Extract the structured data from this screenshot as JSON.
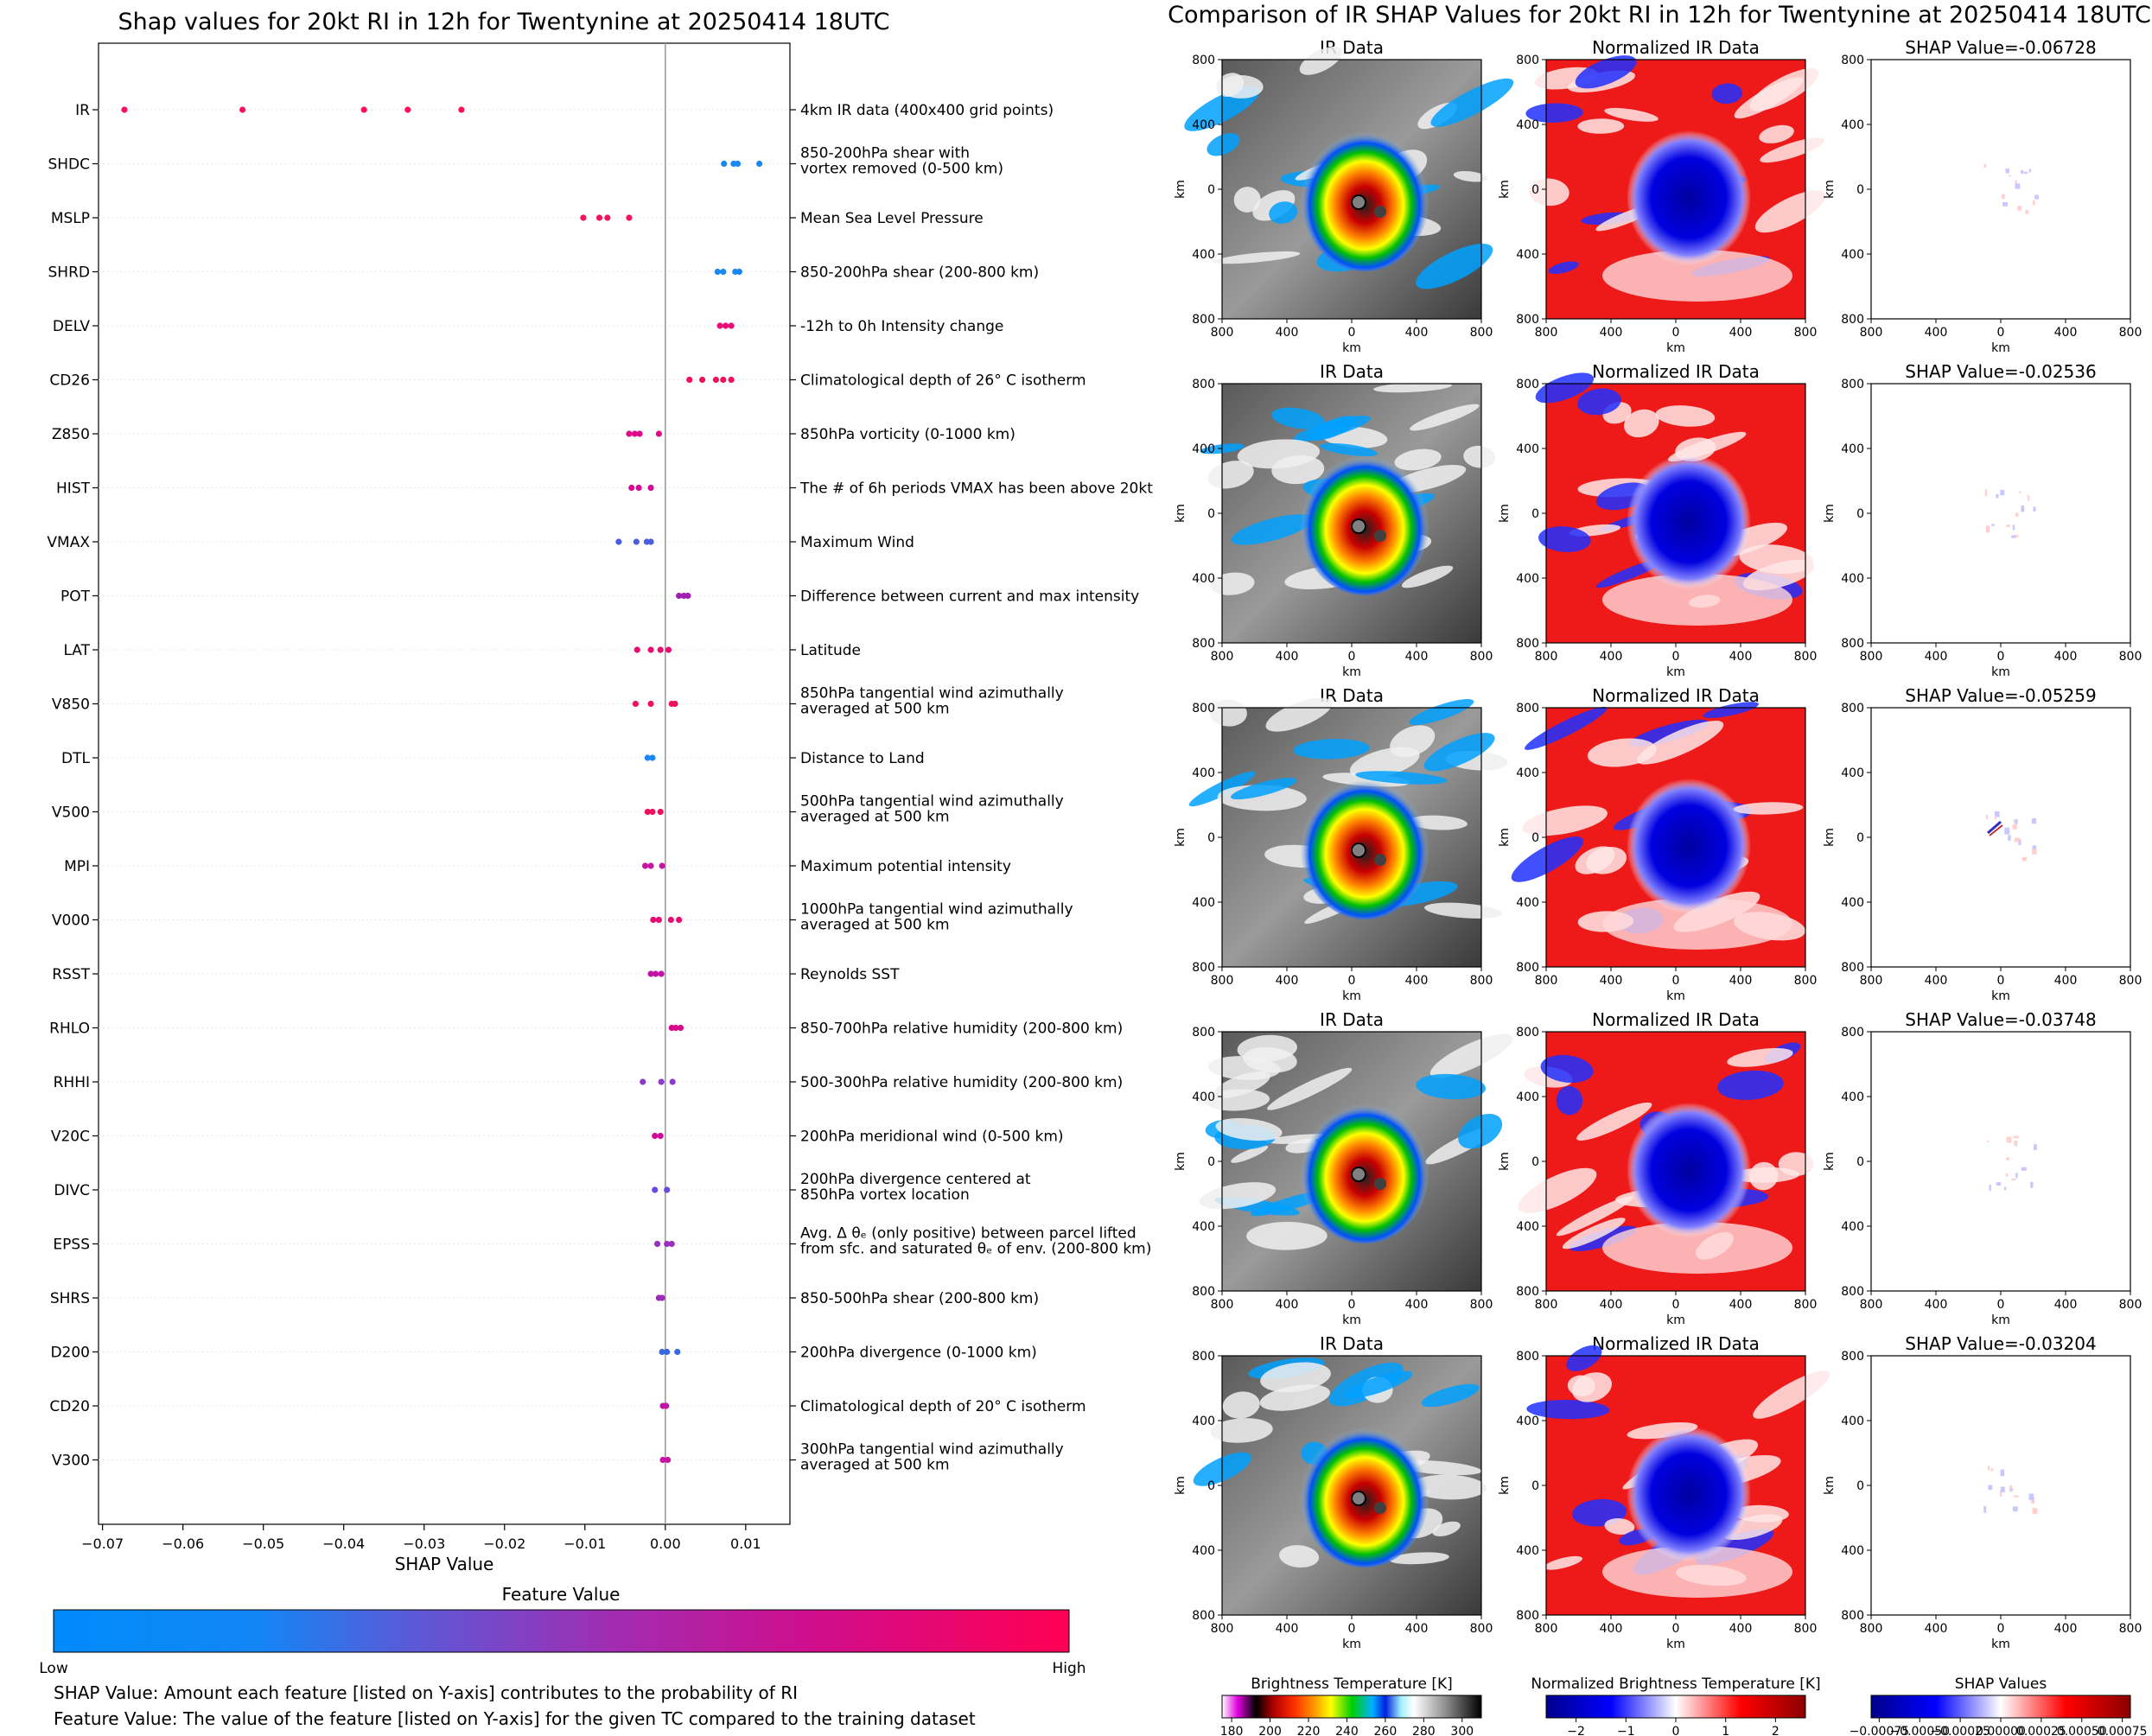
{
  "left_chart": {
    "title": "Shap values for 20kt RI in 12h for Twentynine at 20250414 18UTC",
    "xlabel": "SHAP Value",
    "x_ticks": [
      "−0.07",
      "−0.06",
      "−0.05",
      "−0.04",
      "−0.03",
      "−0.02",
      "−0.01",
      "0.00",
      "0.01"
    ],
    "colorbar": {
      "title": "Feature Value",
      "low_label": "Low",
      "high_label": "High"
    },
    "footnotes": [
      "SHAP Value: Amount each feature [listed on Y-axis] contributes to the probability of RI",
      "Feature Value: The value of the feature [listed on Y-axis] for the given TC compared to the training dataset"
    ]
  },
  "chart_data": [
    {
      "type": "scatter",
      "title": "Shap values for 20kt RI in 12h for Twentynine at 20250414 18UTC",
      "xlabel": "SHAP Value",
      "xlim": [
        -0.0705,
        0.0155
      ],
      "features": [
        {
          "name": "IR",
          "desc": [
            "4km IR data (400x400 grid points)"
          ],
          "values": [
            -0.06728,
            -0.05259,
            -0.03748,
            -0.03204,
            -0.02536
          ],
          "color": "#ff0f58"
        },
        {
          "name": "SHDC",
          "desc": [
            "850-200hPa shear with",
            "vortex removed (0-500 km)"
          ],
          "values": [
            0.0073,
            0.0085,
            0.009,
            0.0117
          ],
          "color": "#1a88f0"
        },
        {
          "name": "MSLP",
          "desc": [
            "Mean Sea Level Pressure"
          ],
          "values": [
            -0.0102,
            -0.0082,
            -0.0072,
            -0.0045
          ],
          "color": "#f0145f"
        },
        {
          "name": "SHRD",
          "desc": [
            "850-200hPa shear (200-800 km)"
          ],
          "values": [
            0.0065,
            0.0072,
            0.0087,
            0.0092
          ],
          "color": "#1a88f0"
        },
        {
          "name": "DELV",
          "desc": [
            "-12h to 0h Intensity change"
          ],
          "values": [
            0.0068,
            0.0075,
            0.0082
          ],
          "color": "#e80d78"
        },
        {
          "name": "CD26",
          "desc": [
            "Climatological depth of 26° C isotherm"
          ],
          "values": [
            0.003,
            0.0046,
            0.0063,
            0.0072,
            0.0082
          ],
          "color": "#f0105f"
        },
        {
          "name": "Z850",
          "desc": [
            "850hPa vorticity (0-1000 km)"
          ],
          "values": [
            -0.0045,
            -0.0038,
            -0.0032,
            -0.0008
          ],
          "color": "#dd0a8a"
        },
        {
          "name": "HIST",
          "desc": [
            "The # of 6h periods VMAX has been above 20kt"
          ],
          "values": [
            -0.0042,
            -0.0033,
            -0.0018
          ],
          "color": "#d40a95"
        },
        {
          "name": "VMAX",
          "desc": [
            "Maximum Wind"
          ],
          "values": [
            -0.0058,
            -0.0036,
            -0.0023,
            -0.0018
          ],
          "color": "#4a5ee0"
        },
        {
          "name": "POT",
          "desc": [
            "Difference between current and max intensity"
          ],
          "values": [
            0.0017,
            0.0023,
            0.0028
          ],
          "color": "#a020b0"
        },
        {
          "name": "LAT",
          "desc": [
            "Latitude"
          ],
          "values": [
            -0.0035,
            -0.0018,
            -0.0006,
            0.0004
          ],
          "color": "#e80d70"
        },
        {
          "name": "V850",
          "desc": [
            "850hPa tangential wind azimuthally",
            "averaged at 500 km"
          ],
          "values": [
            -0.0037,
            -0.0018,
            0.0008,
            0.0012
          ],
          "color": "#f01060"
        },
        {
          "name": "DTL",
          "desc": [
            "Distance to Land"
          ],
          "values": [
            -0.0022,
            -0.0016
          ],
          "color": "#1a88f0"
        },
        {
          "name": "V500",
          "desc": [
            "500hPa tangential wind azimuthally",
            "averaged at 500 km"
          ],
          "values": [
            -0.0022,
            -0.0016,
            -0.0006
          ],
          "color": "#f0105f"
        },
        {
          "name": "MPI",
          "desc": [
            "Maximum potential intensity"
          ],
          "values": [
            -0.0025,
            -0.0018,
            -0.0004
          ],
          "color": "#c814a0"
        },
        {
          "name": "V000",
          "desc": [
            "1000hPa tangential wind azimuthally",
            "averaged at 500 km"
          ],
          "values": [
            -0.0015,
            -0.0008,
            0.0007,
            0.0017
          ],
          "color": "#e80d70"
        },
        {
          "name": "RSST",
          "desc": [
            "Reynolds SST"
          ],
          "values": [
            -0.0018,
            -0.0012,
            -0.0005
          ],
          "color": "#c014a8"
        },
        {
          "name": "RHLO",
          "desc": [
            "850-700hPa relative humidity (200-800 km)"
          ],
          "values": [
            0.0008,
            0.0013,
            0.0019
          ],
          "color": "#d80a8c"
        },
        {
          "name": "RHHI",
          "desc": [
            "500-300hPa relative humidity (200-800 km)"
          ],
          "values": [
            -0.0028,
            -0.0005,
            0.0009
          ],
          "color": "#8e3ac8"
        },
        {
          "name": "V20C",
          "desc": [
            "200hPa meridional wind (0-500 km)"
          ],
          "values": [
            -0.0013,
            -0.0006
          ],
          "color": "#d00a98"
        },
        {
          "name": "DIVC",
          "desc": [
            "200hPa divergence centered at",
            "850hPa vortex location"
          ],
          "values": [
            -0.0013,
            0.0002
          ],
          "color": "#6a4ad8"
        },
        {
          "name": "EPSS",
          "desc": [
            "Avg. Δ θₑ (only positive) between parcel lifted",
            "from sfc. and saturated θₑ of env. (200-800 km)"
          ],
          "values": [
            -0.001,
            0.0002,
            0.0008
          ],
          "color": "#9a30c0"
        },
        {
          "name": "SHRS",
          "desc": [
            "850-500hPa shear (200-800 km)"
          ],
          "values": [
            -0.0008,
            -0.0004
          ],
          "color": "#a028b8"
        },
        {
          "name": "D200",
          "desc": [
            "200hPa divergence (0-1000 km)"
          ],
          "values": [
            -0.0004,
            0.0002,
            0.0015
          ],
          "color": "#3a68e0"
        },
        {
          "name": "CD20",
          "desc": [
            "Climatological depth of 20° C isotherm"
          ],
          "values": [
            -0.0003,
            0.0001
          ],
          "color": "#c014a8"
        },
        {
          "name": "V300",
          "desc": [
            "300hPa tangential wind azimuthally",
            "averaged at 500 km"
          ],
          "values": [
            -0.0003,
            0.0003
          ],
          "color": "#c414a4"
        }
      ]
    },
    {
      "type": "heatmap",
      "title": "Comparison of IR SHAP Values for 20kt RI in 12h for Twentynine at 20250414 18UTC",
      "columns": [
        "IR Data",
        "Normalized IR Data"
      ],
      "shap_titles": [
        "SHAP Value=-0.06728",
        "SHAP Value=-0.02536",
        "SHAP Value=-0.05259",
        "SHAP Value=-0.03748",
        "SHAP Value=-0.03204"
      ],
      "axis_label": "km",
      "ticks": [
        "800",
        "400",
        "0",
        "400",
        "800"
      ]
    }
  ],
  "colorbars": [
    {
      "title": "Brightness Temperature [K]",
      "ticks": [
        "180",
        "200",
        "220",
        "240",
        "260",
        "280",
        "300"
      ]
    },
    {
      "title": "Normalized Brightness Temperature [K]",
      "ticks": [
        "−2",
        "−1",
        "0",
        "1",
        "2"
      ]
    },
    {
      "title": "SHAP Values",
      "ticks": [
        "−0.00075",
        "−0.00050",
        "−0.00025",
        "0.00000",
        "0.00025",
        "0.00050",
        "0.00075"
      ]
    }
  ],
  "colors": {
    "low": "#008bfb",
    "mid": "#a12cb1",
    "high": "#ff0052",
    "ir_ramp": [
      "#ffffff",
      "#e000e0",
      "#000000",
      "#c80000",
      "#ff2000",
      "#ff8000",
      "#ffff00",
      "#00e000",
      "#00b0ff",
      "#0020ff",
      "#a0f0ff",
      "#ffffff",
      "#a0a0a0",
      "#000000"
    ],
    "diverging": [
      "#00008b",
      "#0000ff",
      "#ffffff",
      "#ff0000",
      "#8b0000"
    ]
  }
}
